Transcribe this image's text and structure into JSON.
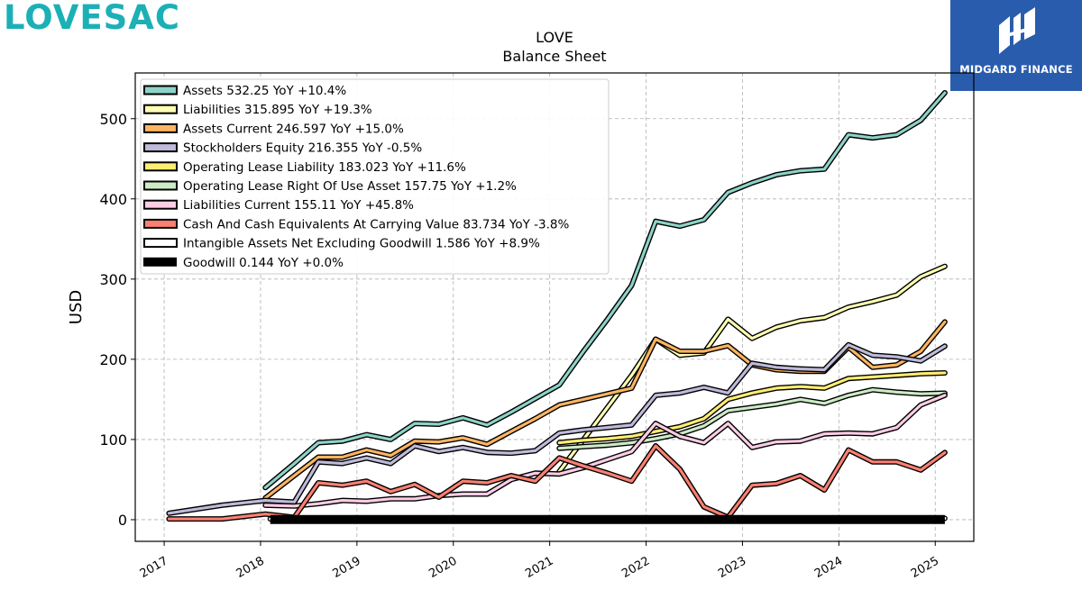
{
  "brand": {
    "logo_text": "LOVESAC"
  },
  "partner": {
    "name": "MIDGARD FINANCE"
  },
  "chart_data": {
    "type": "line",
    "title": "LOVE",
    "subtitle": "Balance  Sheet",
    "ylabel": "USD",
    "xlim": [
      2016.7,
      2025.4
    ],
    "ylim": [
      -27,
      557
    ],
    "yticks": [
      0,
      100,
      200,
      300,
      400,
      500
    ],
    "xticks": [
      2017,
      2018,
      2019,
      2020,
      2021,
      2022,
      2023,
      2024,
      2025
    ],
    "xtick_labels": [
      "2017",
      "2018",
      "2019",
      "2020",
      "2021",
      "2022",
      "2023",
      "2024",
      "2025"
    ],
    "grid": true,
    "legend_position": "top-left",
    "series": [
      {
        "name": "Assets",
        "legend": "Assets  532.25 YoY +10.4%",
        "color": "#8dd3c7",
        "points": [
          [
            2018.05,
            40
          ],
          [
            2018.35,
            70
          ],
          [
            2018.6,
            96
          ],
          [
            2018.85,
            98
          ],
          [
            2019.1,
            106
          ],
          [
            2019.35,
            100
          ],
          [
            2019.6,
            120
          ],
          [
            2019.85,
            119
          ],
          [
            2020.1,
            127
          ],
          [
            2020.35,
            118
          ],
          [
            2020.6,
            134
          ],
          [
            2020.85,
            151
          ],
          [
            2021.1,
            168
          ],
          [
            2021.35,
            210
          ],
          [
            2021.6,
            250
          ],
          [
            2021.85,
            292
          ],
          [
            2022.1,
            372
          ],
          [
            2022.35,
            366
          ],
          [
            2022.6,
            374
          ],
          [
            2022.85,
            408
          ],
          [
            2023.1,
            420
          ],
          [
            2023.35,
            430
          ],
          [
            2023.6,
            435
          ],
          [
            2023.85,
            437
          ],
          [
            2024.1,
            480
          ],
          [
            2024.35,
            476
          ],
          [
            2024.6,
            480
          ],
          [
            2024.85,
            498
          ],
          [
            2025.1,
            532.25
          ]
        ]
      },
      {
        "name": "Liabilities",
        "legend": "Liabilities  315.895 YoY +19.3%",
        "color": "#ffffb3",
        "points": [
          [
            2021.1,
            60
          ],
          [
            2021.35,
            100
          ],
          [
            2021.6,
            140
          ],
          [
            2021.85,
            180
          ],
          [
            2022.1,
            225
          ],
          [
            2022.35,
            205
          ],
          [
            2022.6,
            208
          ],
          [
            2022.85,
            250
          ],
          [
            2023.1,
            226
          ],
          [
            2023.35,
            240
          ],
          [
            2023.6,
            248
          ],
          [
            2023.85,
            252
          ],
          [
            2024.1,
            265
          ],
          [
            2024.35,
            272
          ],
          [
            2024.6,
            280
          ],
          [
            2024.85,
            303
          ],
          [
            2025.1,
            315.895
          ]
        ]
      },
      {
        "name": "Assets Current",
        "legend": "Assets Current  246.597 YoY +15.0%",
        "color": "#fdb462",
        "points": [
          [
            2018.05,
            27
          ],
          [
            2018.35,
            55
          ],
          [
            2018.6,
            78
          ],
          [
            2018.85,
            78
          ],
          [
            2019.1,
            87
          ],
          [
            2019.35,
            80
          ],
          [
            2019.6,
            98
          ],
          [
            2019.85,
            97
          ],
          [
            2020.1,
            102
          ],
          [
            2020.35,
            94
          ],
          [
            2020.6,
            110
          ],
          [
            2020.85,
            126
          ],
          [
            2021.1,
            143
          ],
          [
            2021.35,
            150
          ],
          [
            2021.6,
            157
          ],
          [
            2021.85,
            164
          ],
          [
            2022.1,
            225
          ],
          [
            2022.35,
            210
          ],
          [
            2022.6,
            210
          ],
          [
            2022.85,
            217
          ],
          [
            2023.1,
            193
          ],
          [
            2023.35,
            187
          ],
          [
            2023.6,
            185
          ],
          [
            2023.85,
            185
          ],
          [
            2024.1,
            215
          ],
          [
            2024.35,
            190
          ],
          [
            2024.6,
            193
          ],
          [
            2024.85,
            210
          ],
          [
            2025.1,
            246.597
          ]
        ]
      },
      {
        "name": "Stockholders Equity",
        "legend": "Stockholders Equity  216.355 YoY -0.5%",
        "color": "#bebada",
        "points": [
          [
            2017.05,
            8
          ],
          [
            2017.6,
            18
          ],
          [
            2018.05,
            24
          ],
          [
            2018.35,
            22
          ],
          [
            2018.6,
            72
          ],
          [
            2018.85,
            70
          ],
          [
            2019.1,
            77
          ],
          [
            2019.35,
            70
          ],
          [
            2019.6,
            92
          ],
          [
            2019.85,
            85
          ],
          [
            2020.1,
            90
          ],
          [
            2020.35,
            84
          ],
          [
            2020.6,
            83
          ],
          [
            2020.85,
            86
          ],
          [
            2021.1,
            108
          ],
          [
            2021.35,
            112
          ],
          [
            2021.6,
            115
          ],
          [
            2021.85,
            118
          ],
          [
            2022.1,
            155
          ],
          [
            2022.35,
            158
          ],
          [
            2022.6,
            165
          ],
          [
            2022.85,
            158
          ],
          [
            2023.1,
            195
          ],
          [
            2023.35,
            190
          ],
          [
            2023.6,
            188
          ],
          [
            2023.85,
            187
          ],
          [
            2024.1,
            218
          ],
          [
            2024.35,
            205
          ],
          [
            2024.6,
            203
          ],
          [
            2024.85,
            198
          ],
          [
            2025.1,
            216.355
          ]
        ]
      },
      {
        "name": "Operating Lease Liability",
        "legend": "Operating Lease Liability  183.023 YoY +11.6%",
        "color": "#ffed6f",
        "points": [
          [
            2021.1,
            96
          ],
          [
            2021.35,
            99
          ],
          [
            2021.6,
            101
          ],
          [
            2021.85,
            104
          ],
          [
            2022.1,
            110
          ],
          [
            2022.35,
            116
          ],
          [
            2022.6,
            126
          ],
          [
            2022.85,
            150
          ],
          [
            2023.1,
            158
          ],
          [
            2023.35,
            164
          ],
          [
            2023.6,
            166
          ],
          [
            2023.85,
            164
          ],
          [
            2024.1,
            176
          ],
          [
            2024.35,
            178
          ],
          [
            2024.6,
            180
          ],
          [
            2024.85,
            182
          ],
          [
            2025.1,
            183.023
          ]
        ]
      },
      {
        "name": "Operating Lease Right Of Use Asset",
        "legend": "Operating Lease Right Of Use Asset  157.75 YoY +1.2%",
        "color": "#ccebc5",
        "points": [
          [
            2021.1,
            89
          ],
          [
            2021.35,
            91
          ],
          [
            2021.6,
            93
          ],
          [
            2021.85,
            96
          ],
          [
            2022.1,
            101
          ],
          [
            2022.35,
            107
          ],
          [
            2022.6,
            117
          ],
          [
            2022.85,
            136
          ],
          [
            2023.1,
            140
          ],
          [
            2023.35,
            144
          ],
          [
            2023.6,
            150
          ],
          [
            2023.85,
            145
          ],
          [
            2024.1,
            155
          ],
          [
            2024.35,
            162
          ],
          [
            2024.6,
            159
          ],
          [
            2024.85,
            157
          ],
          [
            2025.1,
            157.75
          ]
        ]
      },
      {
        "name": "Liabilities Current",
        "legend": "Liabilities Current  155.11 YoY +45.8%",
        "color": "#fccde5",
        "points": [
          [
            2018.05,
            18
          ],
          [
            2018.35,
            17
          ],
          [
            2018.6,
            20
          ],
          [
            2018.85,
            24
          ],
          [
            2019.1,
            23
          ],
          [
            2019.35,
            26
          ],
          [
            2019.6,
            26
          ],
          [
            2019.85,
            30
          ],
          [
            2020.1,
            32
          ],
          [
            2020.35,
            32
          ],
          [
            2020.6,
            50
          ],
          [
            2020.85,
            58
          ],
          [
            2021.1,
            57
          ],
          [
            2021.35,
            65
          ],
          [
            2021.6,
            75
          ],
          [
            2021.85,
            85
          ],
          [
            2022.1,
            120
          ],
          [
            2022.35,
            104
          ],
          [
            2022.6,
            96
          ],
          [
            2022.85,
            120
          ],
          [
            2023.1,
            90
          ],
          [
            2023.35,
            97
          ],
          [
            2023.6,
            98
          ],
          [
            2023.85,
            107
          ],
          [
            2024.1,
            108
          ],
          [
            2024.35,
            107
          ],
          [
            2024.6,
            115
          ],
          [
            2024.85,
            143
          ],
          [
            2025.1,
            155.11
          ]
        ]
      },
      {
        "name": "Cash And Cash Equivalents At Carrying Value",
        "legend": "Cash And Cash Equivalents At Carrying Value  83.734 YoY -3.8%",
        "color": "#fb8072",
        "points": [
          [
            2017.05,
            1
          ],
          [
            2017.6,
            1
          ],
          [
            2018.05,
            7
          ],
          [
            2018.35,
            3
          ],
          [
            2018.6,
            46
          ],
          [
            2018.85,
            43
          ],
          [
            2019.1,
            48
          ],
          [
            2019.35,
            35
          ],
          [
            2019.6,
            44
          ],
          [
            2019.85,
            28
          ],
          [
            2020.1,
            48
          ],
          [
            2020.35,
            46
          ],
          [
            2020.6,
            55
          ],
          [
            2020.85,
            48
          ],
          [
            2021.1,
            77
          ],
          [
            2021.35,
            67
          ],
          [
            2021.6,
            58
          ],
          [
            2021.85,
            48
          ],
          [
            2022.1,
            92
          ],
          [
            2022.35,
            63
          ],
          [
            2022.6,
            16
          ],
          [
            2022.85,
            3
          ],
          [
            2023.1,
            43
          ],
          [
            2023.35,
            45
          ],
          [
            2023.6,
            55
          ],
          [
            2023.85,
            37
          ],
          [
            2024.1,
            87
          ],
          [
            2024.35,
            72
          ],
          [
            2024.6,
            72
          ],
          [
            2024.85,
            62
          ],
          [
            2025.1,
            83.734
          ]
        ]
      },
      {
        "name": "Intangible Assets Net Excluding Goodwill",
        "legend": "Intangible Assets Net Excluding Goodwill  1.586 YoY +8.9%",
        "color": "#ffffff",
        "points": [
          [
            2018.1,
            1
          ],
          [
            2025.1,
            1.586
          ]
        ]
      },
      {
        "name": "Goodwill",
        "legend": "Goodwill  0.144 YoY +0.0%",
        "color": "#000000",
        "points": [
          [
            2018.1,
            0.144
          ],
          [
            2025.1,
            0.144
          ]
        ]
      }
    ]
  }
}
